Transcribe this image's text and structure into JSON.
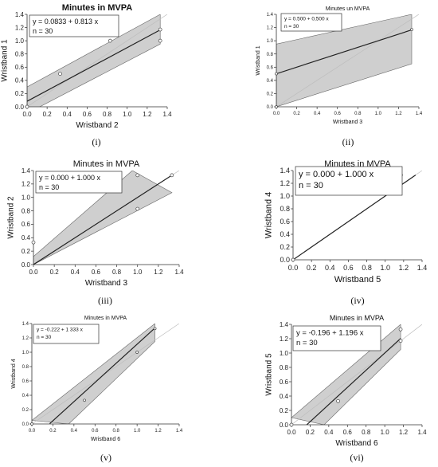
{
  "figure": {
    "captions": [
      "(i)",
      "(ii)",
      "(iii)",
      "(iv)",
      "(v)",
      "(vi)"
    ]
  },
  "chart_data": [
    {
      "id": "i",
      "type": "scatter",
      "title": "Minutes in MVPA",
      "xlabel": "Wristband 2",
      "ylabel": "Wristband 1",
      "xlim": [
        0,
        1.4
      ],
      "ylim": [
        0,
        1.4
      ],
      "xticks": [
        "0.0",
        "0.2",
        "0.4",
        "0.6",
        "0.8",
        "1.0",
        "1.2",
        "1.4"
      ],
      "yticks": [
        "0.0",
        "0.2",
        "0.4",
        "0.6",
        "0.8",
        "1.0",
        "1.2",
        "1.4"
      ],
      "annotation": [
        "y = 0.0833 + 0.813 x",
        "n = 30"
      ],
      "points": [
        [
          0.0,
          0.0
        ],
        [
          0.33,
          0.5
        ],
        [
          0.83,
          1.0
        ],
        [
          1.33,
          1.0
        ],
        [
          1.33,
          1.17
        ]
      ],
      "fit": {
        "intercept": 0.0833,
        "slope": 0.813,
        "x_range": [
          0,
          1.33
        ]
      },
      "band": {
        "lower": [
          [
            0,
            -0.1
          ],
          [
            1.33,
            0.95
          ]
        ],
        "upper": [
          [
            0,
            0.3
          ],
          [
            1.33,
            1.4
          ]
        ]
      },
      "identity_line": true
    },
    {
      "id": "ii",
      "type": "scatter",
      "title": "Minutes un MVPA",
      "xlabel": "Wristband 3",
      "ylabel": "Wristband 1",
      "xlim": [
        0,
        1.4
      ],
      "ylim": [
        0,
        1.4
      ],
      "xticks": [
        "0.0",
        "0.2",
        "0.4",
        "0.6",
        "0.8",
        "1.0",
        "1.2",
        "1.4"
      ],
      "yticks": [
        "0.0",
        "0.2",
        "0.4",
        "0.6",
        "0.8",
        "1.0",
        "1.2",
        "1.4"
      ],
      "annotation": [
        "y = 0.500 + 0,500 x",
        "n = 30"
      ],
      "points": [
        [
          0.0,
          0.0
        ],
        [
          0.0,
          0.5
        ],
        [
          1.33,
          1.17
        ]
      ],
      "fit": {
        "intercept": 0.5,
        "slope": 0.5,
        "x_range": [
          0,
          1.33
        ]
      },
      "band": {
        "lower": [
          [
            0,
            0.0
          ],
          [
            1.33,
            0.65
          ]
        ],
        "upper": [
          [
            0,
            0.95
          ],
          [
            1.33,
            1.4
          ]
        ]
      },
      "identity_line": true
    },
    {
      "id": "iii",
      "type": "scatter",
      "title": "Minutes in MVPA",
      "xlabel": "Wristband 3",
      "ylabel": "Wristband 2",
      "xlim": [
        0,
        1.4
      ],
      "ylim": [
        0,
        1.4
      ],
      "xticks": [
        "0.0",
        "0.2",
        "0.4",
        "0.6",
        "0.8",
        "1.0",
        "1.2",
        "1.4"
      ],
      "yticks": [
        "0.0",
        "0.2",
        "0.4",
        "0.6",
        "0.8",
        "1.0",
        "1.2",
        "1.4"
      ],
      "annotation": [
        "y = 0.000 + 1.000 x",
        "n = 30"
      ],
      "points": [
        [
          0.0,
          0.33
        ],
        [
          1.0,
          0.83
        ],
        [
          1.0,
          1.33
        ],
        [
          1.33,
          1.33
        ]
      ],
      "fit": {
        "intercept": 0.0,
        "slope": 1.0,
        "x_range": [
          0,
          1.33
        ]
      },
      "band": {
        "lower": [
          [
            0,
            0
          ],
          [
            1.33,
            1.07
          ]
        ],
        "upper": [
          [
            0,
            0.12
          ],
          [
            0.95,
            1.4
          ]
        ]
      },
      "identity_line": true
    },
    {
      "id": "iv",
      "type": "scatter",
      "title": "Minutes in MVPA",
      "xlabel": "Wristband 5",
      "ylabel": "Wristband 4",
      "xlim": [
        0,
        1.4
      ],
      "ylim": [
        0,
        1.4
      ],
      "xticks": [
        "0.0",
        "0.2",
        "0.4",
        "0.6",
        "0.8",
        "1.0",
        "1.2",
        "1.4"
      ],
      "yticks": [
        "0.0",
        "0.2",
        "0.4",
        "0.6",
        "0.8",
        "1.0",
        "1.2",
        "1.4"
      ],
      "annotation": [
        "y = 0.000 + 1.000 x",
        "n = 30"
      ],
      "points": [
        [
          0.0,
          0.0
        ],
        [
          1.17,
          1.33
        ]
      ],
      "fit": {
        "intercept": 0.0,
        "slope": 1.0,
        "x_range": [
          0,
          1.33
        ]
      },
      "band": null,
      "identity_line": true
    },
    {
      "id": "v",
      "type": "scatter",
      "title": "Minutes in MVPA",
      "xlabel": "Wristband 6",
      "ylabel": "Wristband 4",
      "xlim": [
        0,
        1.4
      ],
      "ylim": [
        0,
        1.4
      ],
      "xticks": [
        "0.0",
        "0.2",
        "0.4",
        "0.6",
        "0.8",
        "1.0",
        "1.2",
        "1.4"
      ],
      "yticks": [
        "0.0",
        "0.2",
        "0.4",
        "0.6",
        "0.8",
        "1.0",
        "1.2",
        "1.4"
      ],
      "annotation": [
        "y = -0.222 + 1 333 x",
        "n = 30"
      ],
      "points": [
        [
          0.0,
          0.0
        ],
        [
          0.5,
          0.33
        ],
        [
          1.0,
          1.0
        ],
        [
          1.17,
          1.33
        ]
      ],
      "fit": {
        "intercept": -0.222,
        "slope": 1.333,
        "x_range": [
          0.17,
          1.17
        ]
      },
      "band": {
        "lower": [
          [
            0.35,
            0
          ],
          [
            1.17,
            1.15
          ]
        ],
        "upper": [
          [
            0,
            0.05
          ],
          [
            1.17,
            1.4
          ]
        ]
      },
      "identity_line": true
    },
    {
      "id": "vi",
      "type": "scatter",
      "title": "Minutes in MVPA",
      "xlabel": "Wristband 6",
      "ylabel": "Wristband 5",
      "xlim": [
        0,
        1.4
      ],
      "ylim": [
        0,
        1.4
      ],
      "xticks": [
        "0.0",
        "0.2",
        "0.4",
        "0.6",
        "0.8",
        "1.0",
        "1.2",
        "1.4"
      ],
      "yticks": [
        "0.0",
        "0.2",
        "0.4",
        "0.6",
        "0.8",
        "1.0",
        "1.2",
        "1.4"
      ],
      "annotation": [
        "y = -0.196 + 1.196 x",
        "n = 30"
      ],
      "points": [
        [
          0.0,
          0.0
        ],
        [
          0.5,
          0.33
        ],
        [
          1.17,
          1.17
        ],
        [
          1.17,
          1.33
        ]
      ],
      "fit": {
        "intercept": -0.196,
        "slope": 1.196,
        "x_range": [
          0.16,
          1.17
        ]
      },
      "band": {
        "lower": [
          [
            0.35,
            0
          ],
          [
            1.17,
            1.05
          ]
        ],
        "upper": [
          [
            0,
            0.1
          ],
          [
            1.17,
            1.4
          ]
        ]
      },
      "identity_line": true
    }
  ]
}
